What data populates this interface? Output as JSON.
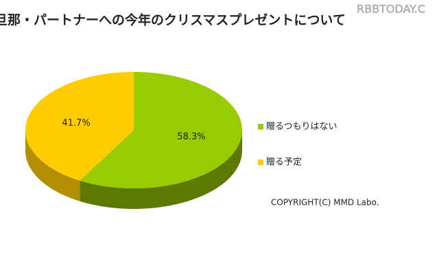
{
  "chart_data": {
    "type": "pie3d",
    "title": "旦那・パートナーへの今年のクリスマスプレゼントについて",
    "watermark": "RBBTODAY.C",
    "copyright": "COPYRIGHT(C) MMD Labo.",
    "categories": [
      "贈るつもりはない",
      "贈る予定"
    ],
    "values": [
      58.3,
      41.7
    ],
    "value_labels": [
      "58.3%",
      "41.7%"
    ],
    "colors": [
      "#99cc00",
      "#ffcc00"
    ],
    "side_colors": [
      "#5c7a00",
      "#b38f00"
    ]
  }
}
